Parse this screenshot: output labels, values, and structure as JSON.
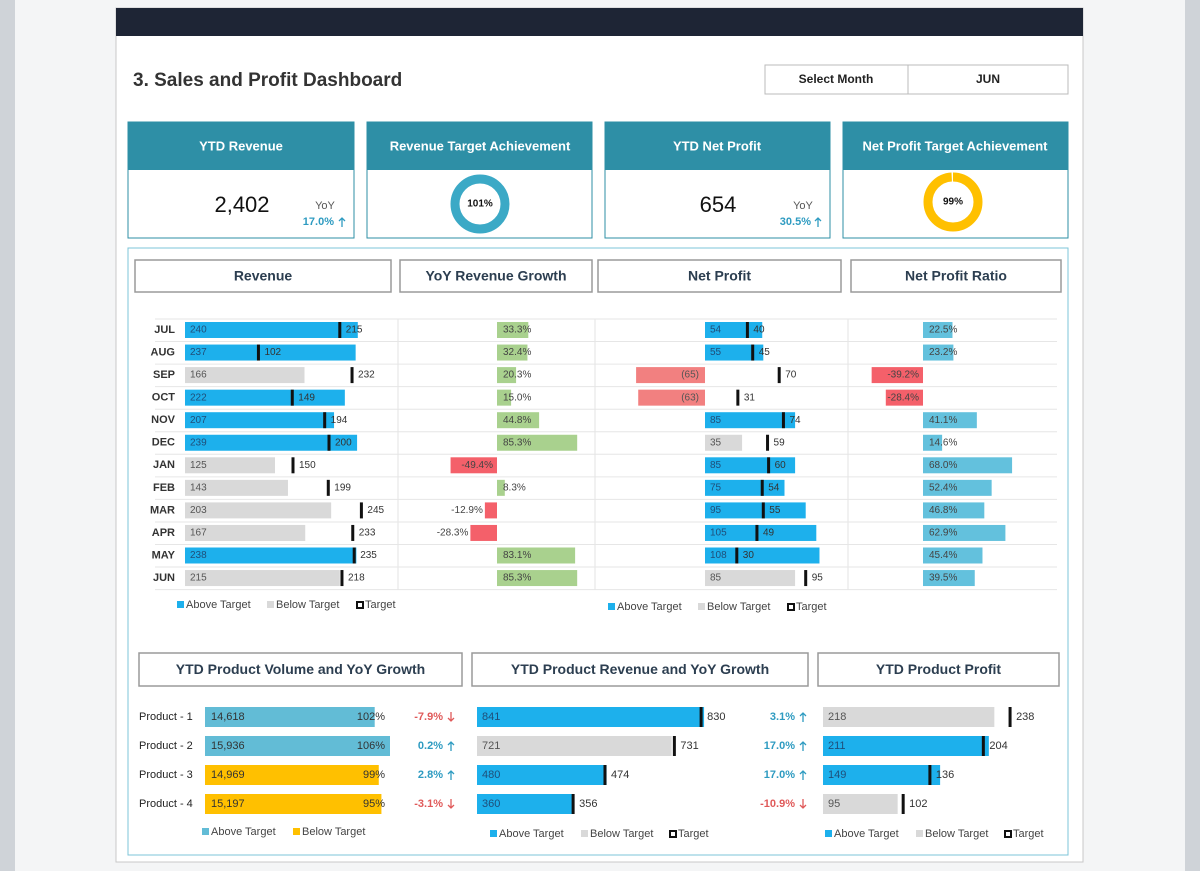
{
  "header": {
    "title": "3. Sales and Profit Dashboard",
    "select_label": "Select Month",
    "select_value": "JUN"
  },
  "colors": {
    "up": "#2e9bc1",
    "down": "#e05a5a"
  },
  "kpis": [
    {
      "title": "YTD Revenue",
      "value": 2402,
      "value_label": "2,402",
      "yoy_label": "YoY",
      "yoy": 17.0,
      "yoy_value_label": "17.0%"
    },
    {
      "title": "Revenue Target Achievement",
      "value": 101,
      "value_label": "101%",
      "color": "#3ba9c6"
    },
    {
      "title": "YTD Net Profit",
      "value": 654,
      "yoy_label": "YoY",
      "yoy": 30.5,
      "yoy_value_label": "30.5%"
    },
    {
      "title": "Net Profit Target Achievement",
      "value": 99,
      "value_label": "99%",
      "color": "#ffc000"
    }
  ],
  "chart_data": [
    {
      "type": "bullet",
      "title": "Revenue",
      "categories": [
        "JUL",
        "AUG",
        "SEP",
        "OCT",
        "NOV",
        "DEC",
        "JAN",
        "FEB",
        "MAR",
        "APR",
        "MAY",
        "JUN"
      ],
      "values": [
        240,
        237,
        166,
        222,
        207,
        239,
        125,
        143,
        203,
        167,
        238,
        215
      ],
      "targets": [
        215,
        102,
        232,
        149,
        194,
        200,
        150,
        199,
        245,
        233,
        235,
        218
      ],
      "above_color": "#1db0ec",
      "below_color": "#d9d9d9",
      "target_color": "#111111",
      "legend": [
        "Above Target",
        "Below Target",
        "Target"
      ]
    },
    {
      "type": "bar",
      "title": "YoY Revenue Growth",
      "values": [
        33.3,
        32.4,
        20.3,
        15.0,
        44.8,
        85.3,
        -49.4,
        8.3,
        -12.9,
        -28.3,
        83.1,
        85.3
      ],
      "value_labels": [
        "33.3%",
        "32.4%",
        "20.3%",
        "15.0%",
        "44.8%",
        "85.3%",
        "-49.4%",
        "8.3%",
        "-12.9%",
        "-28.3%",
        "83.1%",
        "85.3%"
      ],
      "positive_color": "#a9d18e",
      "negative_color": "#f4606a"
    },
    {
      "type": "bullet",
      "title": "Net Profit",
      "values": [
        54,
        55,
        -65,
        -63,
        85,
        35,
        85,
        75,
        95,
        105,
        108,
        85
      ],
      "value_labels": [
        "54",
        "55",
        "(65)",
        "(63)",
        "85",
        "35",
        "85",
        "75",
        "95",
        "105",
        "108",
        "85"
      ],
      "targets": [
        40,
        45,
        70,
        31,
        74,
        59,
        60,
        54,
        55,
        49,
        30,
        95
      ],
      "above_color": "#1db0ec",
      "below_color": "#d9d9d9",
      "negative_color": "#f28080",
      "target_color": "#111111",
      "legend": [
        "Above Target",
        "Below Target",
        "Target"
      ]
    },
    {
      "type": "bar",
      "title": "Net Profit Ratio",
      "values": [
        22.5,
        23.2,
        -39.2,
        -28.4,
        41.1,
        14.6,
        68.0,
        52.4,
        46.8,
        62.9,
        45.4,
        39.5
      ],
      "value_labels": [
        "22.5%",
        "23.2%",
        "-39.2%",
        "-28.4%",
        "41.1%",
        "14.6%",
        "68.0%",
        "52.4%",
        "46.8%",
        "62.9%",
        "45.4%",
        "39.5%"
      ],
      "positive_color": "#63c1dd",
      "negative_color": "#f4606a"
    },
    {
      "type": "product-volume",
      "title": "YTD Product Volume and YoY Growth",
      "categories": [
        "Product - 1",
        "Product - 2",
        "Product - 3",
        "Product - 4"
      ],
      "values": [
        14618,
        15936,
        14969,
        15197
      ],
      "value_labels": [
        "14,618",
        "15,936",
        "14,969",
        "15,197"
      ],
      "achievement": [
        102,
        106,
        99,
        95
      ],
      "achievement_labels": [
        "102%",
        "106%",
        "99%",
        "95%"
      ],
      "growth": [
        -7.9,
        0.2,
        2.8,
        -3.1
      ],
      "growth_labels": [
        "-7.9%",
        "0.2%",
        "2.8%",
        "-3.1%"
      ],
      "above_color": "#62bcd6",
      "below_color": "#ffc000",
      "legend": [
        "Above Target",
        "Below Target"
      ]
    },
    {
      "type": "bullet",
      "title": "YTD Product Revenue and YoY Growth",
      "values": [
        841,
        721,
        480,
        360
      ],
      "targets": [
        830,
        731,
        474,
        356
      ],
      "growth": [
        3.1,
        17.0,
        17.0,
        -10.9
      ],
      "growth_labels": [
        "3.1%",
        "17.0%",
        "17.0%",
        "-10.9%"
      ],
      "above_color": "#1db0ec",
      "below_color": "#d9d9d9",
      "target_color": "#111111",
      "legend": [
        "Above Target",
        "Below Target",
        "Target"
      ]
    },
    {
      "type": "bullet",
      "title": "YTD Product Profit",
      "values": [
        218,
        211,
        149,
        95
      ],
      "targets": [
        238,
        204,
        136,
        102
      ],
      "above_color": "#1db0ec",
      "below_color": "#d9d9d9",
      "target_color": "#111111",
      "legend": [
        "Above Target",
        "Below Target",
        "Target"
      ]
    }
  ]
}
